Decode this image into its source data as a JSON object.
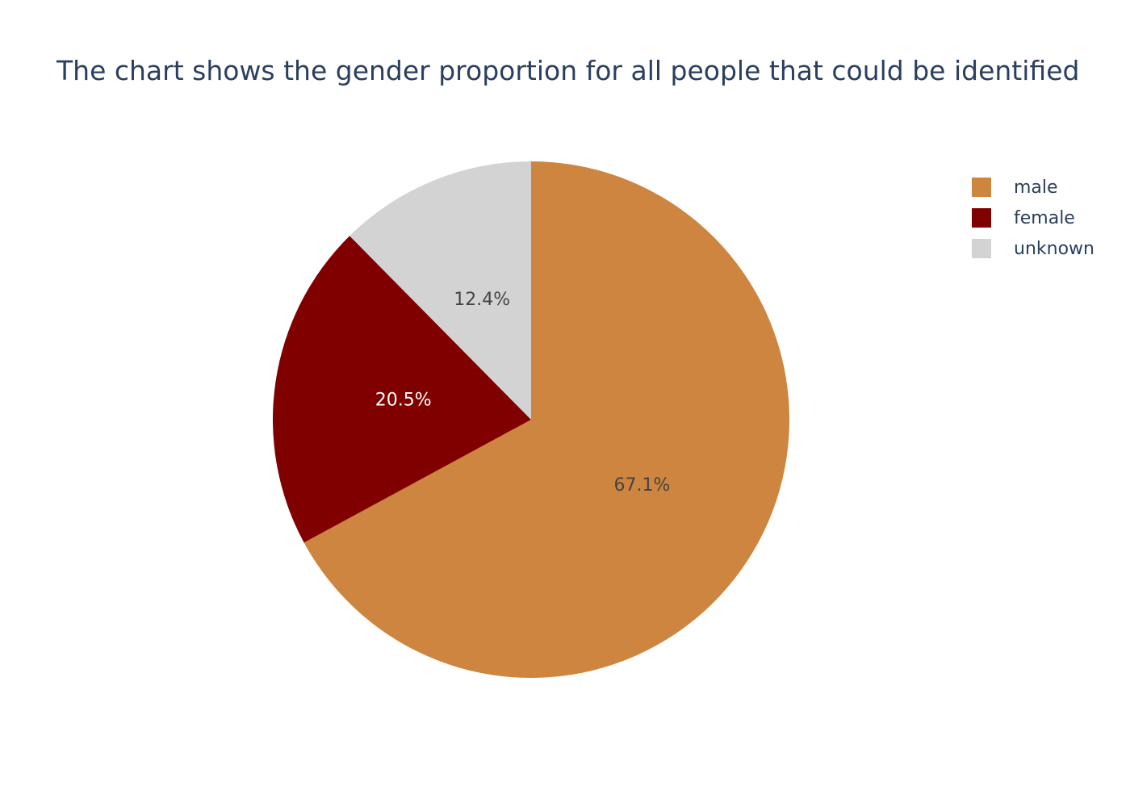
{
  "chart_data": {
    "type": "pie",
    "title": "The chart shows the gender proportion for all people that could be identified",
    "categories": [
      "male",
      "female",
      "unknown"
    ],
    "values": [
      67.1,
      20.5,
      12.4
    ],
    "labels_text": [
      "67.1%",
      "20.5%",
      "12.4%"
    ],
    "colors": [
      "#cd853f",
      "#800000",
      "#d3d3d3"
    ],
    "label_colors": [
      "#444444",
      "#ffffff",
      "#444444"
    ],
    "direction": "clockwise",
    "start_angle": "12 o'clock",
    "legend_position": "top-right"
  }
}
